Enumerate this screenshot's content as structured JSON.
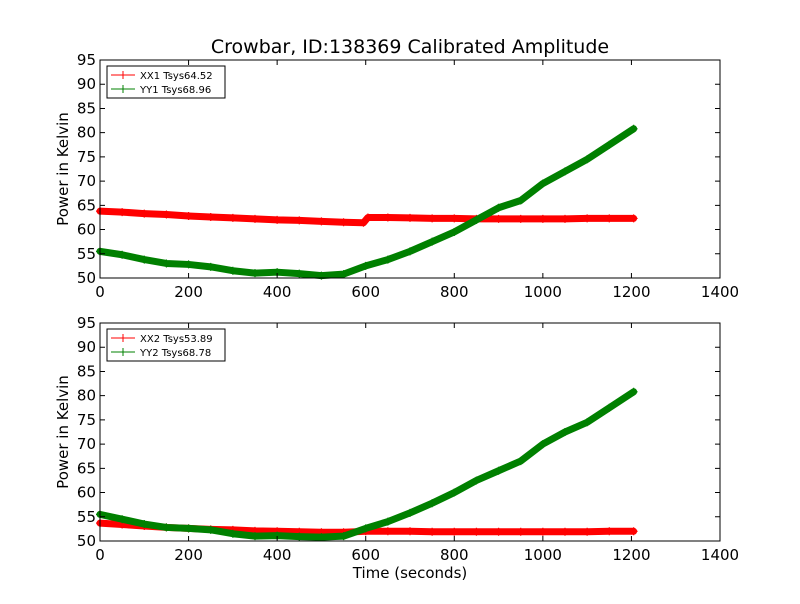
{
  "figure": {
    "title": "Crowbar, ID:138369 Calibrated Amplitude"
  },
  "chart_data": [
    {
      "type": "line",
      "title": "Crowbar, ID:138369 Calibrated Amplitude",
      "xlabel": "",
      "ylabel": "Power in Kelvin",
      "xlim": [
        0,
        1400
      ],
      "ylim": [
        50,
        95
      ],
      "xticks": [
        "0",
        "200",
        "400",
        "600",
        "800",
        "1000",
        "1200",
        "1400"
      ],
      "yticks": [
        "50",
        "55",
        "60",
        "65",
        "70",
        "75",
        "80",
        "85",
        "90",
        "95"
      ],
      "grid": false,
      "legend_position": "top-left",
      "series": [
        {
          "name": "XX1 Tsys64.52",
          "color": "#ff0000",
          "x": [
            0,
            50,
            100,
            150,
            200,
            250,
            300,
            350,
            400,
            450,
            500,
            550,
            595,
            605,
            650,
            700,
            750,
            800,
            850,
            900,
            950,
            1000,
            1050,
            1100,
            1150,
            1205
          ],
          "y": [
            63.8,
            63.6,
            63.3,
            63.1,
            62.8,
            62.6,
            62.4,
            62.2,
            62.0,
            61.9,
            61.7,
            61.5,
            61.4,
            62.5,
            62.5,
            62.4,
            62.3,
            62.3,
            62.2,
            62.2,
            62.2,
            62.2,
            62.2,
            62.3,
            62.3,
            62.3
          ]
        },
        {
          "name": "YY1 Tsys68.96",
          "color": "#008000",
          "x": [
            0,
            50,
            100,
            150,
            200,
            250,
            300,
            350,
            400,
            450,
            500,
            550,
            600,
            650,
            700,
            750,
            800,
            850,
            900,
            950,
            1000,
            1050,
            1100,
            1150,
            1205
          ],
          "y": [
            55.5,
            54.8,
            53.8,
            53.0,
            52.8,
            52.3,
            51.5,
            51.0,
            51.2,
            50.9,
            50.5,
            50.8,
            52.5,
            53.8,
            55.5,
            57.5,
            59.5,
            62.0,
            64.5,
            66.0,
            69.5,
            72.0,
            74.5,
            77.5,
            80.8
          ]
        }
      ]
    },
    {
      "type": "line",
      "title": "",
      "xlabel": "Time (seconds)",
      "ylabel": "Power in Kelvin",
      "xlim": [
        0,
        1400
      ],
      "ylim": [
        50,
        95
      ],
      "xticks": [
        "0",
        "200",
        "400",
        "600",
        "800",
        "1000",
        "1200",
        "1400"
      ],
      "yticks": [
        "50",
        "55",
        "60",
        "65",
        "70",
        "75",
        "80",
        "85",
        "90",
        "95"
      ],
      "grid": false,
      "legend_position": "top-left",
      "series": [
        {
          "name": "XX2 Tsys53.89",
          "color": "#ff0000",
          "x": [
            0,
            50,
            100,
            150,
            200,
            250,
            300,
            350,
            400,
            450,
            500,
            550,
            600,
            650,
            700,
            750,
            800,
            850,
            900,
            950,
            1000,
            1050,
            1100,
            1150,
            1205
          ],
          "y": [
            53.7,
            53.4,
            53.1,
            52.8,
            52.6,
            52.4,
            52.3,
            52.1,
            52.0,
            51.9,
            51.8,
            51.8,
            52.0,
            52.0,
            52.0,
            51.9,
            51.9,
            51.9,
            51.9,
            51.9,
            51.9,
            51.9,
            51.9,
            52.0,
            52.0
          ]
        },
        {
          "name": "YY2 Tsys68.78",
          "color": "#008000",
          "x": [
            0,
            50,
            100,
            150,
            200,
            250,
            300,
            350,
            400,
            450,
            500,
            550,
            600,
            650,
            700,
            750,
            800,
            850,
            900,
            950,
            1000,
            1050,
            1100,
            1150,
            1205
          ],
          "y": [
            55.5,
            54.5,
            53.5,
            52.8,
            52.6,
            52.3,
            51.5,
            51.0,
            51.1,
            50.9,
            50.8,
            51.0,
            52.6,
            54.0,
            55.8,
            57.8,
            60.0,
            62.5,
            64.5,
            66.5,
            70.0,
            72.5,
            74.5,
            77.5,
            80.8
          ]
        }
      ]
    }
  ]
}
